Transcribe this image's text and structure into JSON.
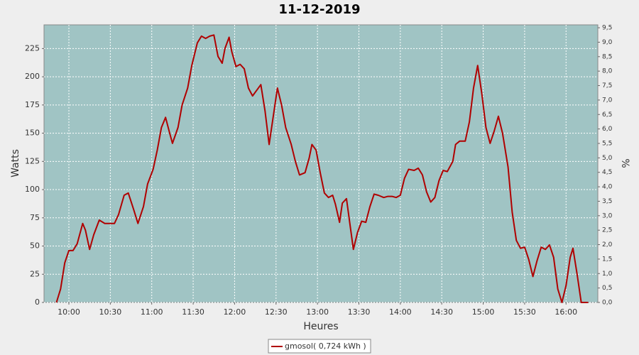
{
  "chart_data": {
    "type": "line",
    "title": "11-12-2019",
    "xlabel": "Heures",
    "ylabel": "Watts",
    "y2label": "%",
    "xlim": [
      "09:42",
      "16:23"
    ],
    "xticks": [
      "10:00",
      "10:30",
      "11:00",
      "11:30",
      "12:00",
      "12:30",
      "13:00",
      "13:30",
      "14:00",
      "14:30",
      "15:00",
      "15:30",
      "16:00"
    ],
    "ylim": [
      0,
      246
    ],
    "yticks": [
      0,
      25,
      50,
      75,
      100,
      125,
      150,
      175,
      200,
      225
    ],
    "y2lim": [
      0,
      9.6
    ],
    "y2ticks": [
      {
        "value": 0,
        "label": "0,0"
      },
      {
        "value": 0.5,
        "label": "0,5"
      },
      {
        "value": 1,
        "label": "1,0"
      },
      {
        "value": 1.5,
        "label": "1,5"
      },
      {
        "value": 2,
        "label": "2,0"
      },
      {
        "value": 2.5,
        "label": "2,5"
      },
      {
        "value": 3,
        "label": "3,0"
      },
      {
        "value": 3.5,
        "label": "3,5"
      },
      {
        "value": 4,
        "label": "4,0"
      },
      {
        "value": 4.5,
        "label": "4,5"
      },
      {
        "value": 5,
        "label": "5,0"
      },
      {
        "value": 5.5,
        "label": "5,5"
      },
      {
        "value": 6,
        "label": "6,0"
      },
      {
        "value": 6.5,
        "label": "6,5"
      },
      {
        "value": 7,
        "label": "7,0"
      },
      {
        "value": 7.5,
        "label": "7,5"
      },
      {
        "value": 8,
        "label": "8,0"
      },
      {
        "value": 8.5,
        "label": "8,5"
      },
      {
        "value": 9,
        "label": "9,0"
      },
      {
        "value": 9.5,
        "label": "9,5"
      }
    ],
    "grid": true,
    "legend": "bottom",
    "x": [
      "09:51",
      "09:54",
      "09:57",
      "10:00",
      "10:03",
      "10:06",
      "10:10",
      "10:12",
      "10:15",
      "10:18",
      "10:22",
      "10:26",
      "10:30",
      "10:33",
      "10:36",
      "10:40",
      "10:43",
      "10:47",
      "10:50",
      "10:54",
      "10:57",
      "11:01",
      "11:04",
      "11:07",
      "11:10",
      "11:13",
      "11:15",
      "11:19",
      "11:22",
      "11:26",
      "11:29",
      "11:33",
      "11:36",
      "11:39",
      "11:42",
      "11:45",
      "11:48",
      "11:51",
      "11:53",
      "11:56",
      "11:58",
      "12:01",
      "12:04",
      "12:07",
      "12:10",
      "12:13",
      "12:16",
      "12:19",
      "12:22",
      "12:25",
      "12:28",
      "12:31",
      "12:34",
      "12:37",
      "12:41",
      "12:44",
      "12:47",
      "12:51",
      "12:54",
      "12:56",
      "12:59",
      "13:02",
      "13:05",
      "13:08",
      "13:11",
      "13:13",
      "13:16",
      "13:18",
      "13:21",
      "13:24",
      "13:26",
      "13:29",
      "13:32",
      "13:35",
      "13:38",
      "13:41",
      "13:44",
      "13:48",
      "13:51",
      "13:54",
      "13:57",
      "14:00",
      "14:03",
      "14:06",
      "14:10",
      "14:13",
      "14:16",
      "14:19",
      "14:22",
      "14:25",
      "14:28",
      "14:31",
      "14:34",
      "14:38",
      "14:40",
      "14:43",
      "14:47",
      "14:50",
      "14:53",
      "14:56",
      "14:59",
      "15:02",
      "15:05",
      "15:08",
      "15:11",
      "15:14",
      "15:18",
      "15:21",
      "15:24",
      "15:27",
      "15:30",
      "15:33",
      "15:36",
      "15:39",
      "15:42",
      "15:45",
      "15:48",
      "15:51",
      "15:54",
      "15:57",
      "16:00",
      "16:03",
      "16:05",
      "16:08",
      "16:11",
      "16:16"
    ],
    "series": [
      {
        "name": "gmosol( 0,724 kWh )",
        "color": "#b00000",
        "values": [
          0,
          12,
          35,
          46,
          46,
          52,
          70,
          64,
          47,
          60,
          73,
          70,
          70,
          70,
          78,
          95,
          97,
          82,
          70,
          85,
          105,
          118,
          135,
          155,
          164,
          150,
          141,
          155,
          175,
          190,
          210,
          230,
          236,
          234,
          236,
          237,
          218,
          212,
          225,
          235,
          222,
          209,
          211,
          207,
          190,
          183,
          188,
          193,
          170,
          140,
          165,
          190,
          175,
          155,
          140,
          125,
          113,
          115,
          128,
          140,
          135,
          115,
          97,
          93,
          95,
          87,
          71,
          88,
          92,
          65,
          47,
          62,
          72,
          71,
          85,
          96,
          95,
          93,
          94,
          94,
          93,
          95,
          110,
          118,
          117,
          119,
          113,
          98,
          89,
          93,
          108,
          117,
          116,
          125,
          140,
          143,
          143,
          160,
          190,
          210,
          185,
          155,
          141,
          152,
          165,
          150,
          120,
          80,
          55,
          48,
          49,
          38,
          23,
          37,
          49,
          47,
          51,
          40,
          12,
          0,
          15,
          40,
          48,
          25,
          0,
          0
        ]
      }
    ]
  }
}
